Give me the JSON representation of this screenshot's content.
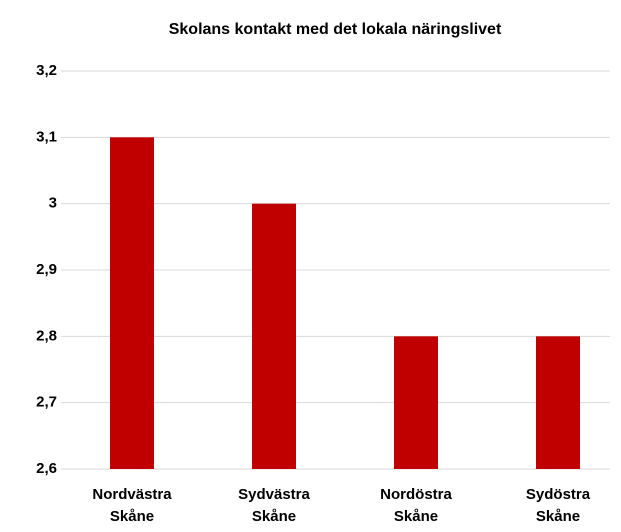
{
  "chart_data": {
    "type": "bar",
    "title": "Skolans kontakt med det lokala näringslivet",
    "categories": [
      "Nordvästra Skåne",
      "Sydvästra Skåne",
      "Nordöstra Skåne",
      "Sydöstra Skåne"
    ],
    "values": [
      3.1,
      3.0,
      2.8,
      2.8
    ],
    "color": "#c00000",
    "ylim": [
      2.6,
      3.2
    ],
    "yticks": [
      {
        "value": 2.6,
        "label": "2,6"
      },
      {
        "value": 2.7,
        "label": "2,7"
      },
      {
        "value": 2.8,
        "label": "2,8"
      },
      {
        "value": 2.9,
        "label": "2,9"
      },
      3,
      {
        "value": 3.1,
        "label": "3,1"
      },
      {
        "value": 3.2,
        "label": "3,2"
      }
    ],
    "grid": true
  }
}
